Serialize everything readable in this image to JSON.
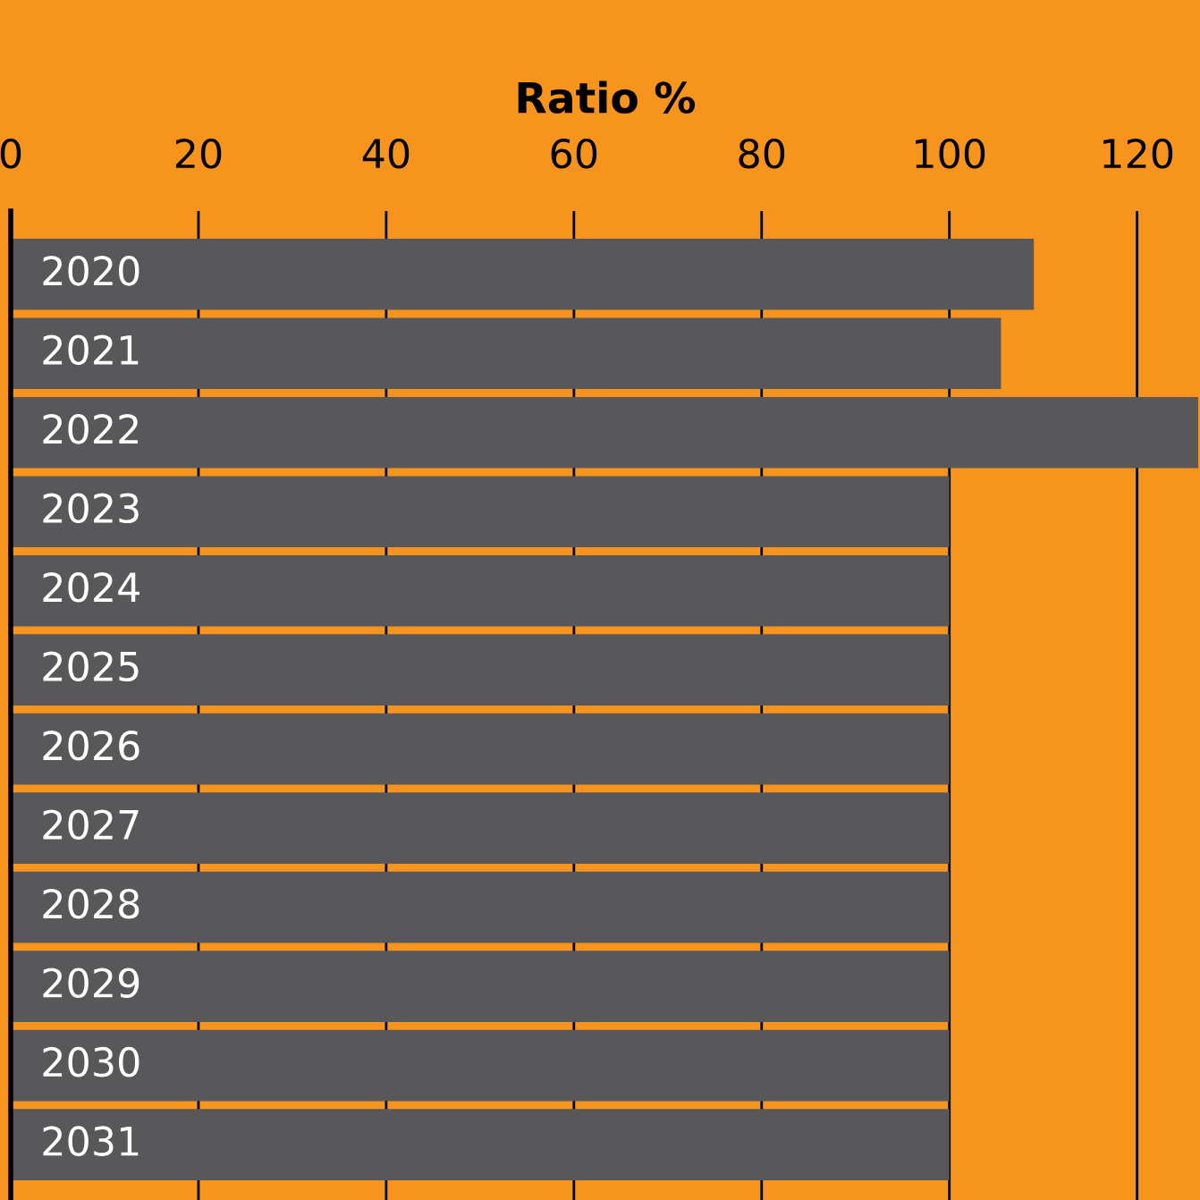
{
  "chart_data": {
    "type": "bar",
    "orientation": "horizontal",
    "xlabel": "Ratio %",
    "categories": [
      "2020",
      "2021",
      "2022",
      "2023",
      "2024",
      "2025",
      "2026",
      "2027",
      "2028",
      "2029",
      "2030",
      "2031"
    ],
    "values": [
      109,
      105.5,
      126.5,
      100,
      100,
      100,
      100,
      100,
      100,
      100,
      100,
      100
    ],
    "color": "#58585a",
    "xlim": [
      0,
      126.7
    ],
    "xticks": [
      0,
      20,
      40,
      60,
      80,
      100,
      120
    ],
    "grid": "x",
    "legend": false
  }
}
